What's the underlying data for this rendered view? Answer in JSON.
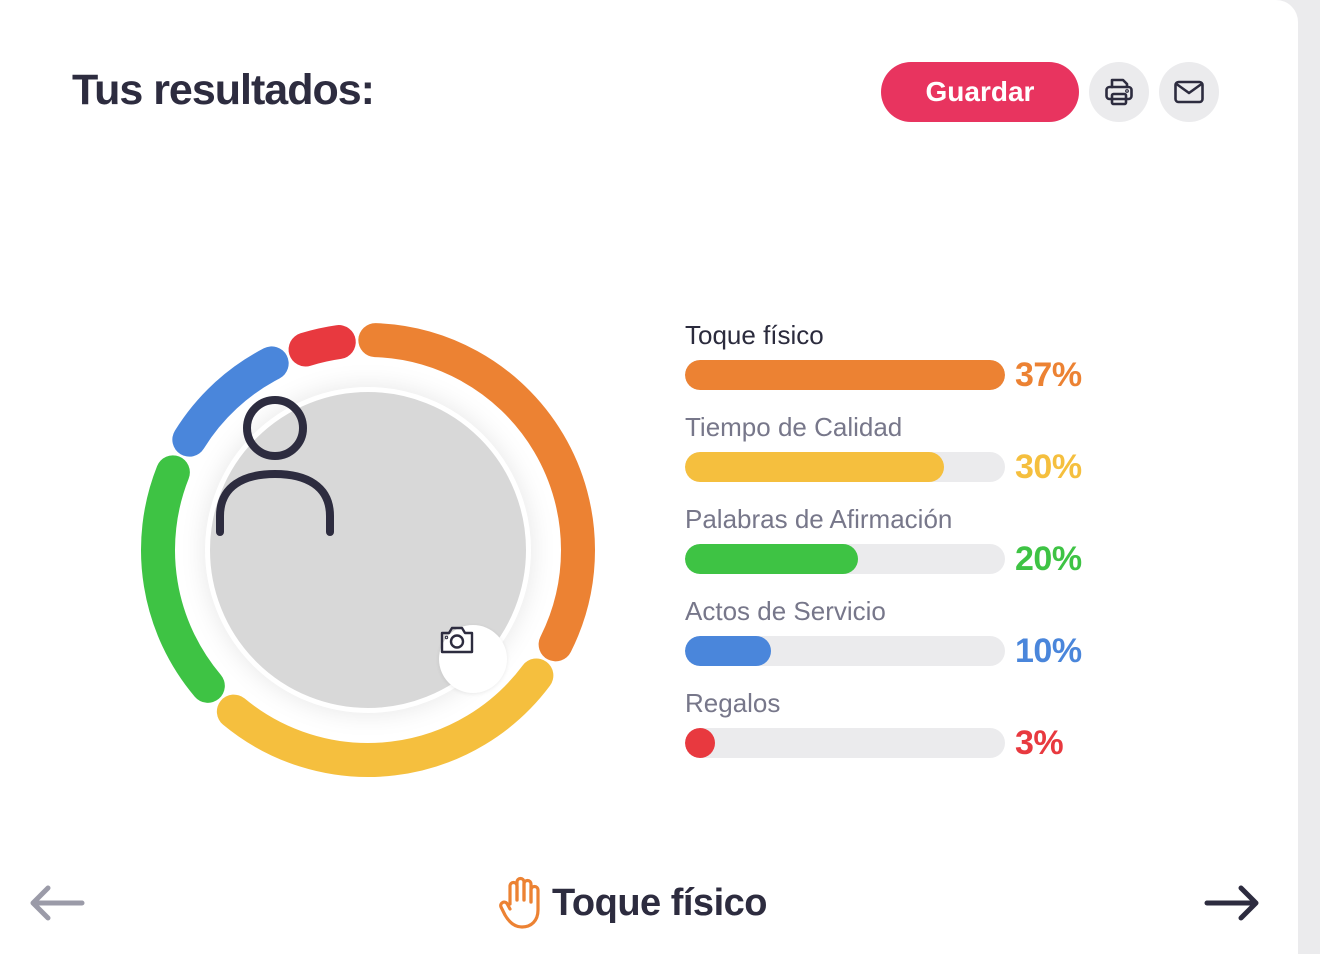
{
  "header": {
    "title": "Tus resultados:",
    "save_label": "Guardar",
    "print_icon": "printer-icon",
    "mail_icon": "envelope-icon"
  },
  "results": [
    {
      "label": "Toque físico",
      "percent_text": "37%",
      "value": 37,
      "color": "#ec8233"
    },
    {
      "label": "Tiempo de Calidad",
      "percent_text": "30%",
      "value": 30,
      "color": "#f5bf3e"
    },
    {
      "label": "Palabras de Afirmación",
      "percent_text": "20%",
      "value": 20,
      "color": "#3ec344"
    },
    {
      "label": "Actos de Servicio",
      "percent_text": "10%",
      "value": 10,
      "color": "#4a86db"
    },
    {
      "label": "Regalos",
      "percent_text": "3%",
      "value": 3,
      "color": "#e8393f"
    }
  ],
  "avatar": {
    "icon": "user-icon",
    "camera_icon": "camera-icon"
  },
  "footer": {
    "current_label": "Toque físico",
    "current_icon": "hand-icon",
    "prev_icon": "arrow-left-icon",
    "next_icon": "arrow-right-icon"
  }
}
